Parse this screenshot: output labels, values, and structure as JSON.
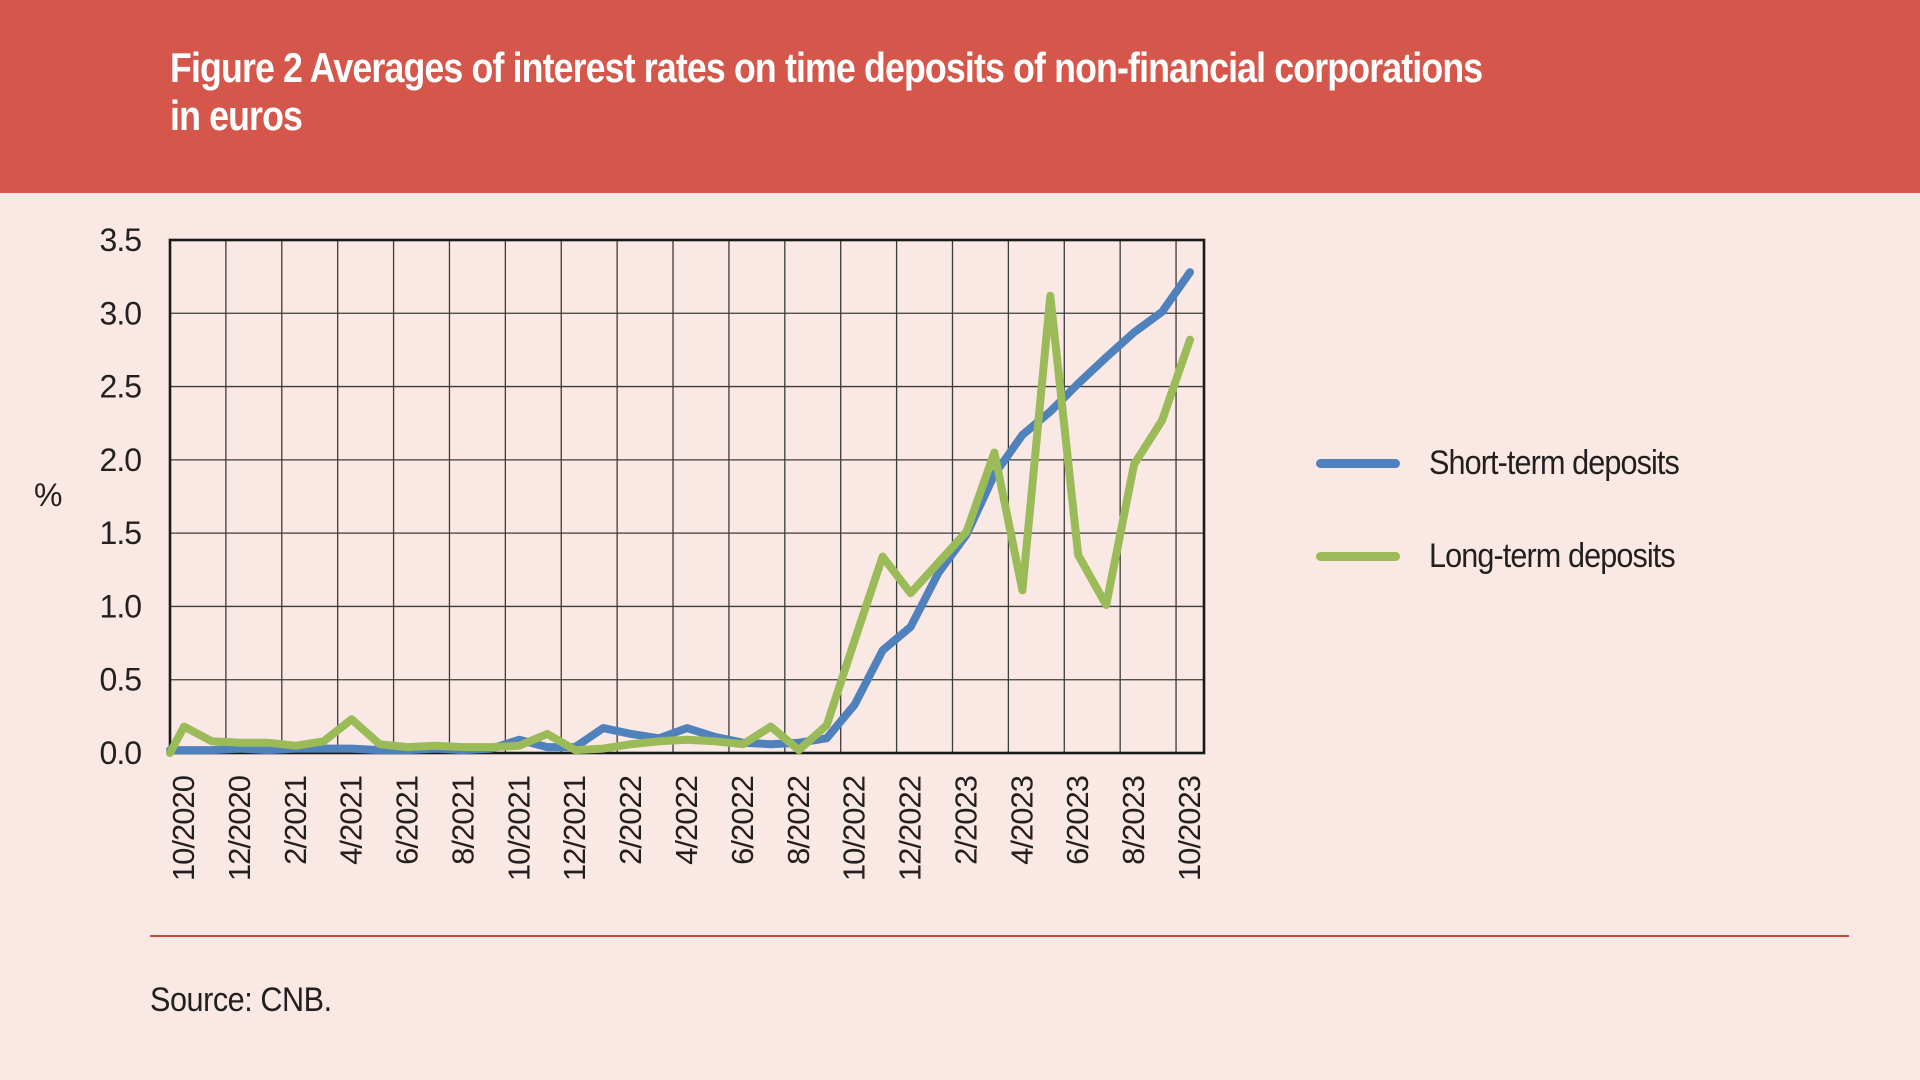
{
  "header": {
    "title_lines": [
      "Figure 2 Averages of interest rates on time deposits of non-financial corporations",
      "in euros"
    ],
    "bg_color": "#d5564a",
    "text_color": "#ffffff"
  },
  "chart_data": {
    "type": "line",
    "title": "Figure 2 Averages of interest rates on time deposits of non-financial corporations in euros",
    "xlabel": "",
    "ylabel": "%",
    "ylim": [
      0,
      3.5
    ],
    "ytick_labels": [
      "0.0",
      "0.5",
      "1.0",
      "1.5",
      "2.0",
      "2.5",
      "3.0",
      "3.5"
    ],
    "grid": true,
    "legend_position": "right",
    "x": [
      "10/2020",
      "11/2020",
      "12/2020",
      "1/2021",
      "2/2021",
      "3/2021",
      "4/2021",
      "5/2021",
      "6/2021",
      "7/2021",
      "8/2021",
      "9/2021",
      "10/2021",
      "11/2021",
      "12/2021",
      "1/2022",
      "2/2022",
      "3/2022",
      "4/2022",
      "5/2022",
      "6/2022",
      "7/2022",
      "8/2022",
      "9/2022",
      "10/2022",
      "11/2022",
      "12/2022",
      "1/2023",
      "2/2023",
      "3/2023",
      "4/2023",
      "5/2023",
      "6/2023",
      "7/2023",
      "8/2023",
      "9/2023",
      "10/2023"
    ],
    "xtick_labels": [
      "10/2020",
      "12/2020",
      "2/2021",
      "4/2021",
      "6/2021",
      "8/2021",
      "10/2021",
      "12/2021",
      "2/2022",
      "4/2022",
      "6/2022",
      "8/2022",
      "10/2022",
      "12/2022",
      "2/2023",
      "4/2023",
      "6/2023",
      "8/2023",
      "10/2023"
    ],
    "series": [
      {
        "name": "Short-term deposits",
        "color": "#4f81bd",
        "axis_lead": 0.02,
        "values": [
          0.02,
          0.02,
          0.03,
          0.02,
          0.03,
          0.03,
          0.03,
          0.02,
          0.02,
          0.03,
          0.02,
          0.03,
          0.09,
          0.04,
          0.04,
          0.17,
          0.13,
          0.1,
          0.17,
          0.11,
          0.07,
          0.06,
          0.07,
          0.1,
          0.33,
          0.7,
          0.86,
          1.23,
          1.49,
          1.9,
          2.17,
          2.33,
          2.52,
          2.7,
          2.87,
          3.01,
          3.28
        ]
      },
      {
        "name": "Long-term deposits",
        "color": "#9bbb59",
        "axis_lead": 0.0,
        "values": [
          0.18,
          0.08,
          0.07,
          0.07,
          0.05,
          0.08,
          0.23,
          0.06,
          0.04,
          0.05,
          0.04,
          0.04,
          0.05,
          0.13,
          0.02,
          0.03,
          0.06,
          0.08,
          0.09,
          0.08,
          0.06,
          0.18,
          0.02,
          0.19,
          0.77,
          1.34,
          1.09,
          1.3,
          1.51,
          2.05,
          1.11,
          3.12,
          1.35,
          1.01,
          1.97,
          2.27,
          2.82
        ]
      }
    ]
  },
  "legend": {
    "items": [
      {
        "label": "Short-term deposits",
        "color": "#4f81bd"
      },
      {
        "label": "Long-term deposits",
        "color": "#9bbb59"
      }
    ]
  },
  "source": {
    "text": "Source: CNB."
  },
  "colors": {
    "background": "#f9e8e3",
    "header": "#d5564a",
    "grid": "#3c3c3c",
    "plot_border": "#1a1a1a",
    "divider": "#c84a38",
    "text": "#231f20"
  }
}
